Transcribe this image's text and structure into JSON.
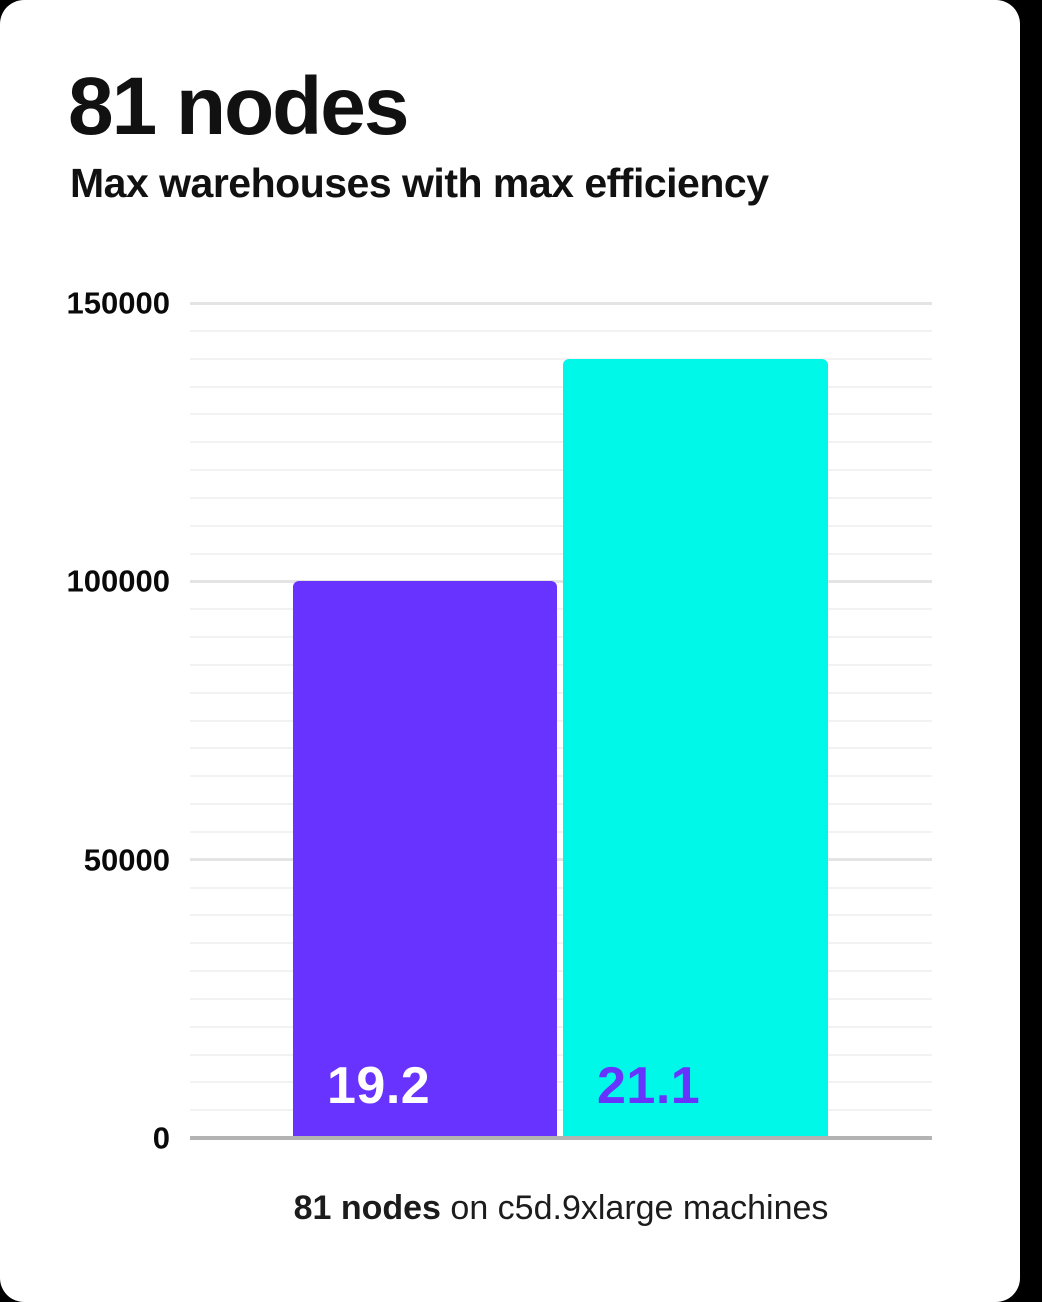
{
  "header": {
    "title": "81 nodes",
    "subtitle": "Max warehouses with max efficiency"
  },
  "chart_data": {
    "type": "bar",
    "categories": [
      "19.2",
      "21.1"
    ],
    "values": [
      100000,
      140000
    ],
    "bar_labels": [
      "19.2",
      "21.1"
    ],
    "bar_colors": [
      "#6933ff",
      "#00f8e8"
    ],
    "bar_label_colors": [
      "#ffffff",
      "#6933ff"
    ],
    "title": "81 nodes",
    "subtitle": "Max warehouses with max efficiency",
    "xlabel": "",
    "ylabel": "",
    "ylim": [
      0,
      150000
    ],
    "yticks": [
      0,
      50000,
      100000,
      150000
    ],
    "minor_grid_step": 5000,
    "grid": true,
    "legend": false,
    "annotation": "81 nodes on c5d.9xlarge machines"
  },
  "caption": {
    "bold_text": "81 nodes",
    "rest_text": " on c5d.9xlarge machines"
  },
  "colors": {
    "page_background": "#000000",
    "card_background": "#ffffff",
    "text": "#111111",
    "baseline": "#b3b3b3",
    "major_gridline": "#e4e4e4",
    "minor_gridline": "#f2f2f2",
    "bar_purple": "#6933ff",
    "bar_cyan": "#00f8e8"
  }
}
